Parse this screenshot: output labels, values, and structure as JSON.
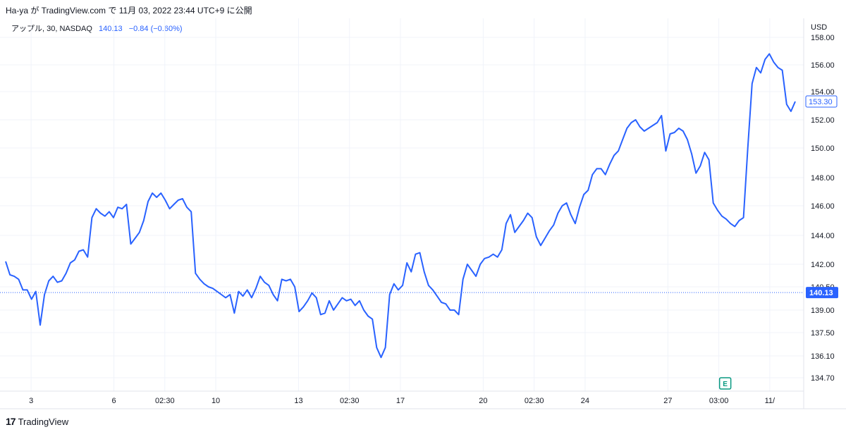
{
  "header": {
    "attribution": "Ha-ya が TradingView.com で 11月 03, 2022 23:44 UTC+9 に公開"
  },
  "legend": {
    "symbol": "アップル, 30, NASDAQ",
    "price": "140.13",
    "change": "−0.84 (−0.60%)"
  },
  "footer": {
    "logo_text": "17",
    "brand": "TradingView"
  },
  "colors": {
    "line": "#2962ff",
    "grid": "#f0f3fa",
    "axis_text": "#131722",
    "earnings": "#089981"
  },
  "icons": {
    "earnings_marker": "E",
    "brand_logo": "tradingview-logo-icon"
  },
  "chart_data": {
    "type": "line",
    "currency_label": "USD",
    "last_price_label": "153.30",
    "ref_price_label": "140.13",
    "ref_price": 140.13,
    "last_price": 153.3,
    "y_ticks": [
      {
        "value": 158.0,
        "label": "158.00"
      },
      {
        "value": 156.0,
        "label": "156.00"
      },
      {
        "value": 154.0,
        "label": "154.00"
      },
      {
        "value": 152.0,
        "label": "152.00"
      },
      {
        "value": 150.0,
        "label": "150.00"
      },
      {
        "value": 148.0,
        "label": "148.00"
      },
      {
        "value": 146.0,
        "label": "146.00"
      },
      {
        "value": 144.0,
        "label": "144.00"
      },
      {
        "value": 142.0,
        "label": "142.00"
      },
      {
        "value": 140.5,
        "label": "140.50"
      },
      {
        "value": 139.0,
        "label": "139.00"
      },
      {
        "value": 137.5,
        "label": "137.50"
      },
      {
        "value": 136.1,
        "label": "136.10"
      },
      {
        "value": 134.7,
        "label": "134.70"
      }
    ],
    "x_ticks": [
      {
        "index": 4,
        "label": "3"
      },
      {
        "index": 17,
        "label": "6"
      },
      {
        "index": 25,
        "label": "02:30"
      },
      {
        "index": 33,
        "label": "10"
      },
      {
        "index": 46,
        "label": "13"
      },
      {
        "index": 54,
        "label": "02:30"
      },
      {
        "index": 62,
        "label": "17"
      },
      {
        "index": 75,
        "label": "20"
      },
      {
        "index": 83,
        "label": "02:30"
      },
      {
        "index": 91,
        "label": "24"
      },
      {
        "index": 104,
        "label": "27"
      },
      {
        "index": 112,
        "label": "03:00"
      },
      {
        "index": 120,
        "label": "11/"
      }
    ],
    "earnings_index": 113,
    "values": [
      142.2,
      141.3,
      141.2,
      141.0,
      140.3,
      140.3,
      139.7,
      140.2,
      138.0,
      140.0,
      140.9,
      141.2,
      140.8,
      140.9,
      141.4,
      142.1,
      142.3,
      142.9,
      143.0,
      142.5,
      145.2,
      145.8,
      145.5,
      145.3,
      145.6,
      145.2,
      145.9,
      145.8,
      146.1,
      143.4,
      143.8,
      144.2,
      145.0,
      146.3,
      146.9,
      146.6,
      146.9,
      146.4,
      145.8,
      146.1,
      146.4,
      146.5,
      145.9,
      145.6,
      141.4,
      141.0,
      140.7,
      140.5,
      140.4,
      140.2,
      140.0,
      139.8,
      140.0,
      138.8,
      140.2,
      139.9,
      140.3,
      139.8,
      140.4,
      141.2,
      140.8,
      140.6,
      140.0,
      139.6,
      141.0,
      140.9,
      141.0,
      140.5,
      138.9,
      139.2,
      139.6,
      140.1,
      139.8,
      138.7,
      138.8,
      139.6,
      139.0,
      139.4,
      139.8,
      139.6,
      139.7,
      139.3,
      139.6,
      139.0,
      138.6,
      138.4,
      136.6,
      136.0,
      136.6,
      140.0,
      140.7,
      140.3,
      140.6,
      142.1,
      141.5,
      142.7,
      142.8,
      141.5,
      140.6,
      140.3,
      139.9,
      139.5,
      139.4,
      139.0,
      139.0,
      138.7,
      141.0,
      142.0,
      141.6,
      141.2,
      142.0,
      142.4,
      142.5,
      142.7,
      142.5,
      143.0,
      144.8,
      145.4,
      144.2,
      144.6,
      145.0,
      145.5,
      145.2,
      143.9,
      143.3,
      143.8,
      144.3,
      144.7,
      145.5,
      146.0,
      146.2,
      145.4,
      144.8,
      145.9,
      146.8,
      147.1,
      148.2,
      148.6,
      148.6,
      148.2,
      148.9,
      149.5,
      149.8,
      150.6,
      151.4,
      151.8,
      152.0,
      151.5,
      151.2,
      151.4,
      151.6,
      151.8,
      152.3,
      149.8,
      151.0,
      151.1,
      151.4,
      151.2,
      150.6,
      149.6,
      148.3,
      148.8,
      149.7,
      149.2,
      146.2,
      145.7,
      145.3,
      145.1,
      144.8,
      144.6,
      145.0,
      145.2,
      150.0,
      154.6,
      155.8,
      155.4,
      156.4,
      156.8,
      156.2,
      155.8,
      155.6,
      153.1,
      152.6,
      153.3
    ]
  }
}
